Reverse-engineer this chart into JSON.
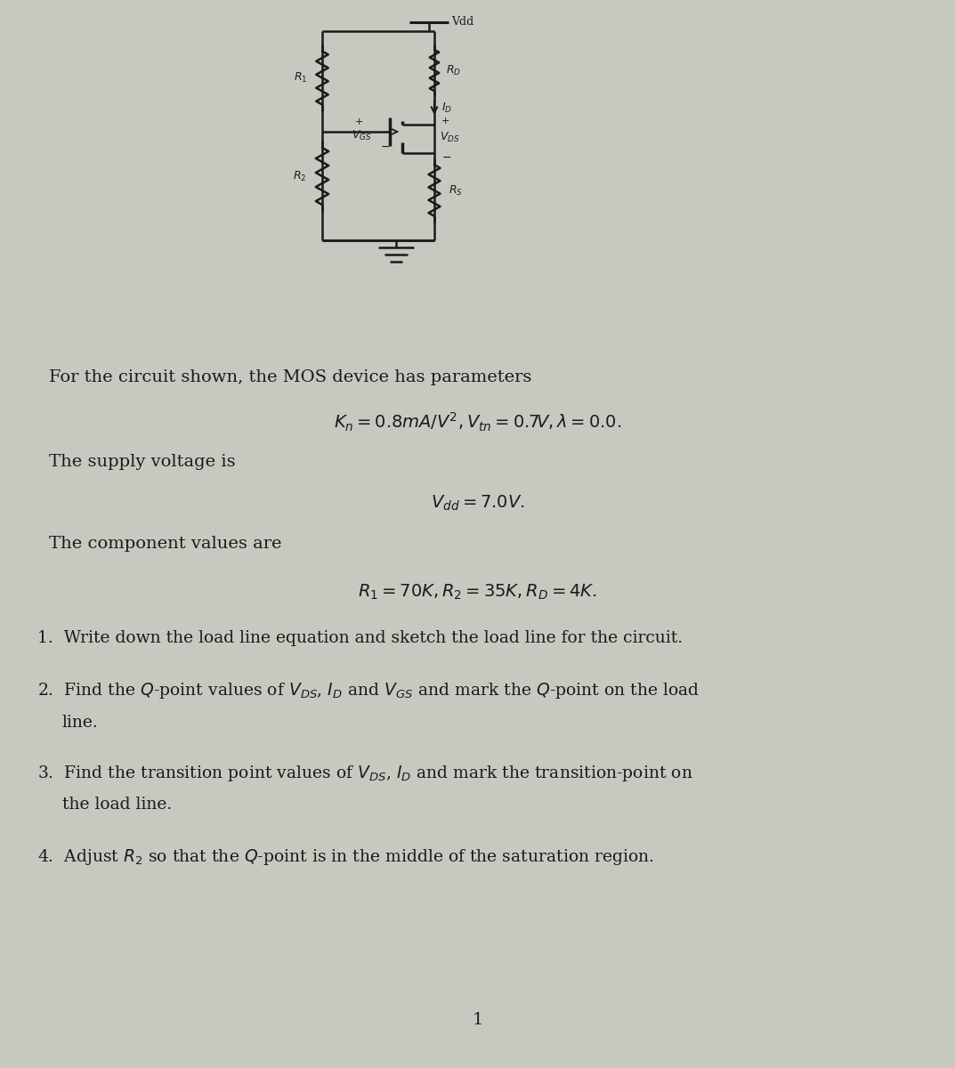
{
  "bg_color": "#c8c8c0",
  "text_color": "#1a1a1a",
  "page_width": 10.73,
  "page_height": 12.0,
  "line1": "For the circuit shown, the MOS device has parameters",
  "line2": "$K_n = 0.8mA/V^2, V_{tn} = 0.7V, \\lambda = 0.0.$",
  "line3": "The supply voltage is",
  "line4": "$V_{dd} = 7.0V.$",
  "line5": "The component values are",
  "line6": "$R_1 = 70K, R_2 = 35K, R_D = 4K.$",
  "page_num": "1",
  "font_size_body": 14,
  "font_size_item": 13.5,
  "circuit_bg": "#b8b8b0"
}
